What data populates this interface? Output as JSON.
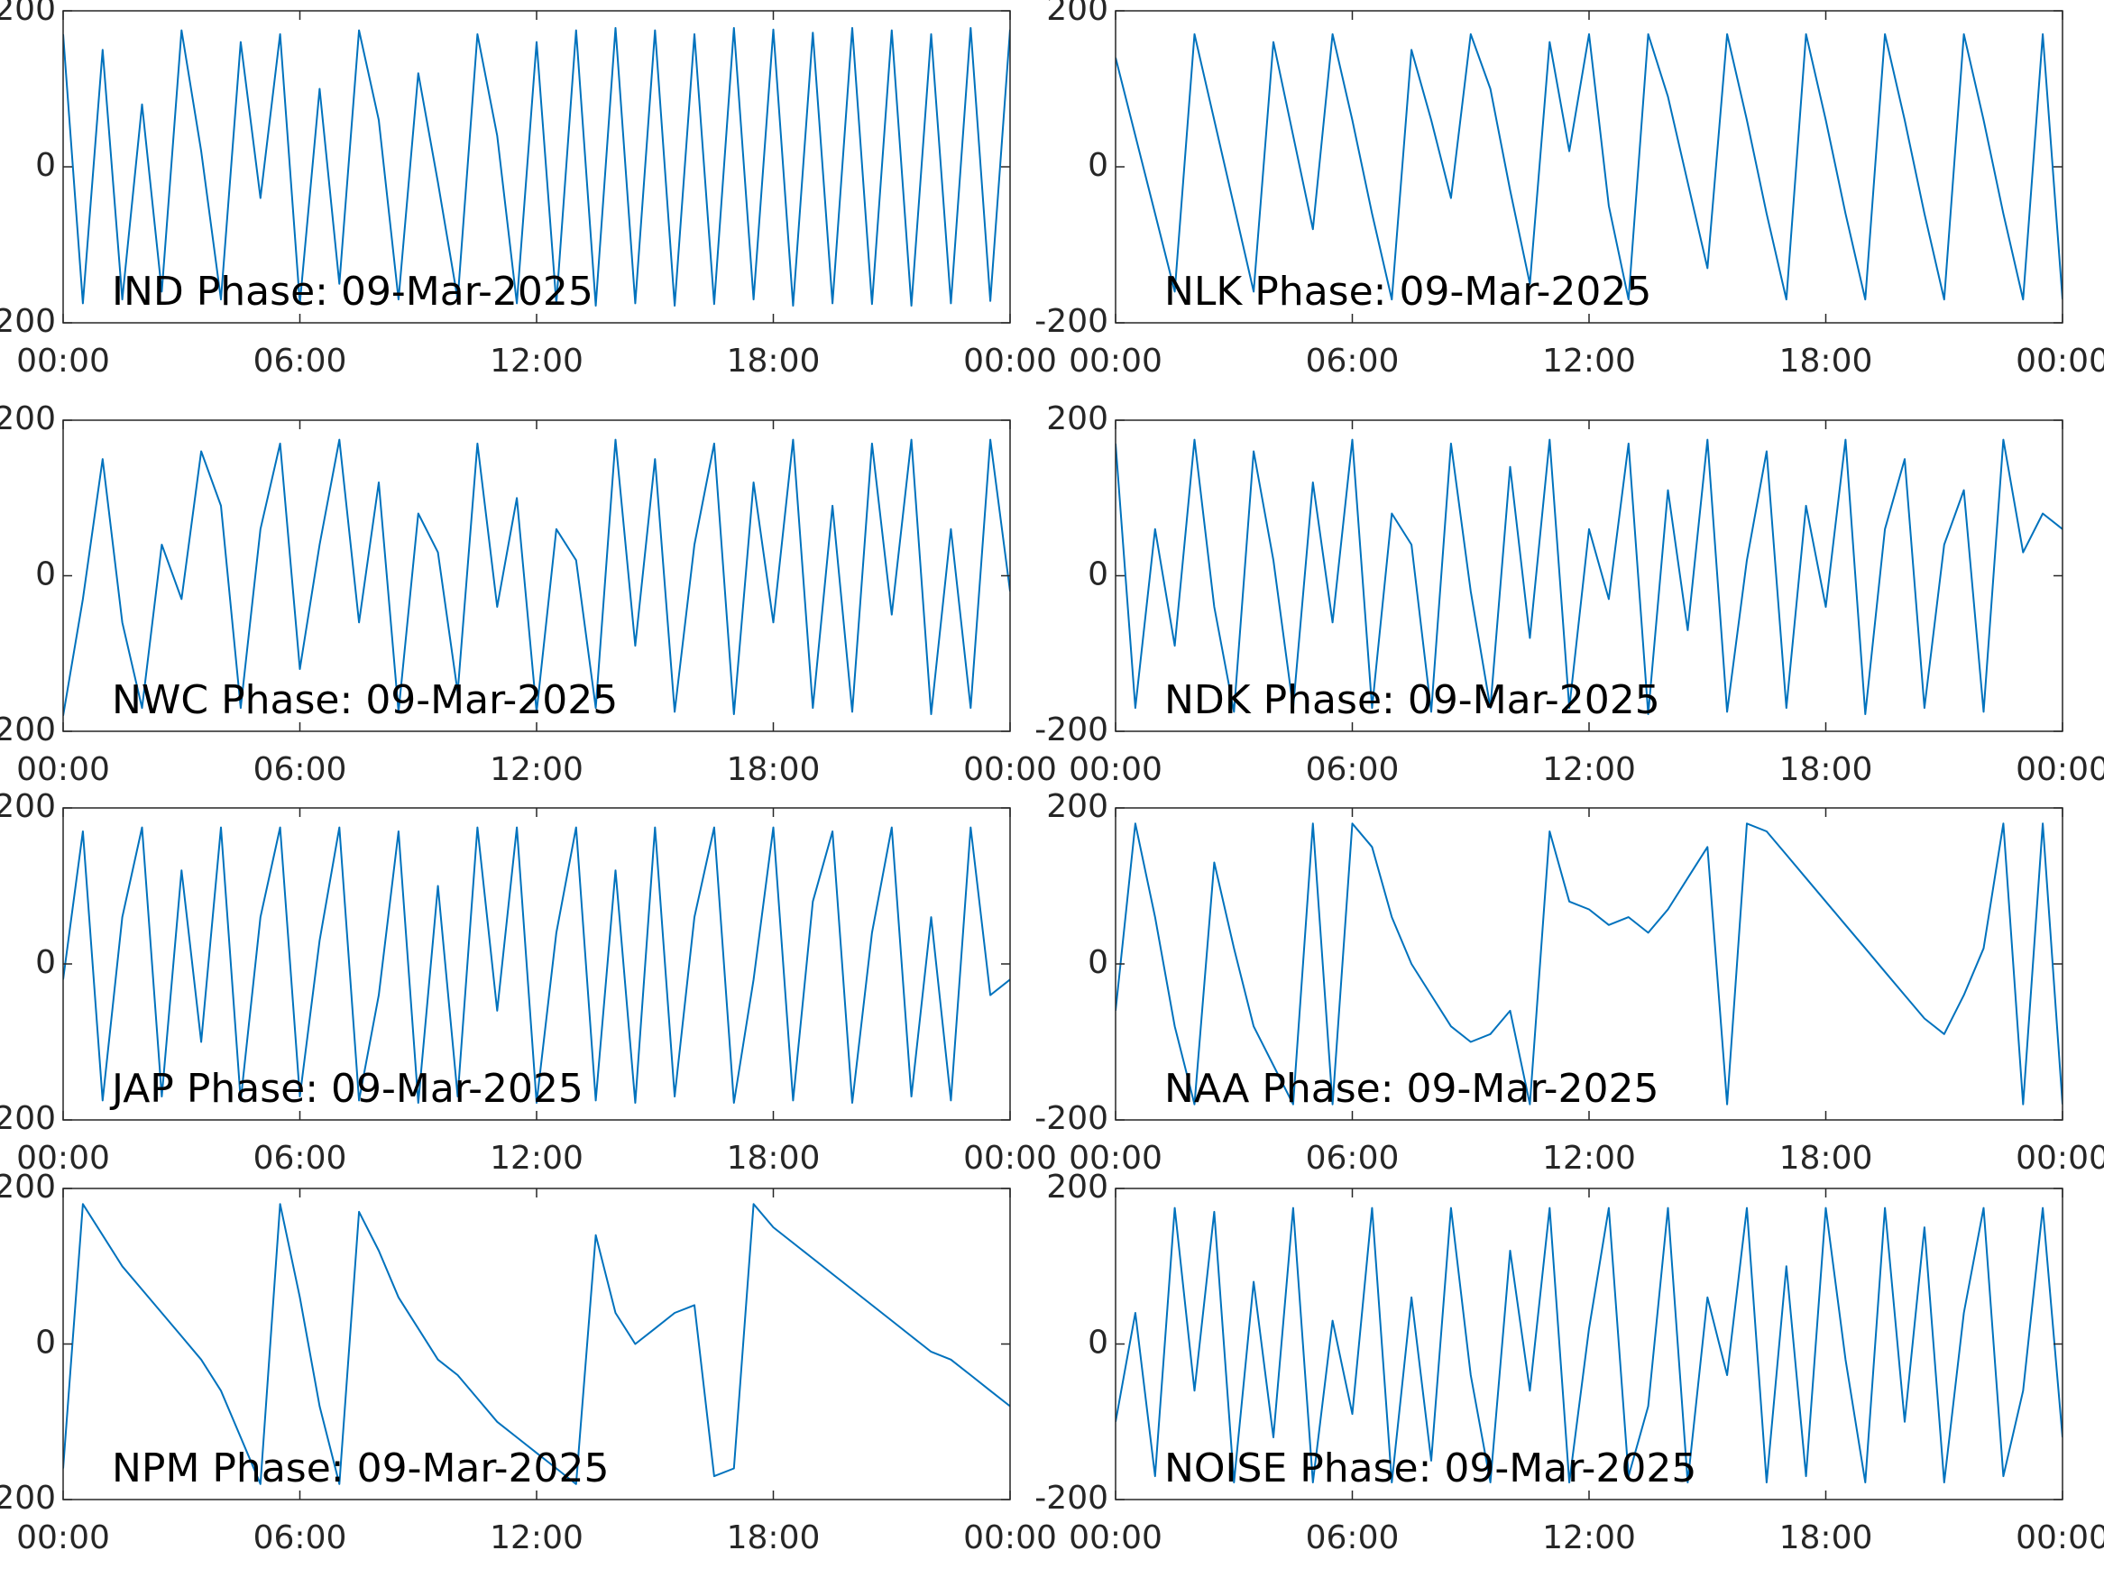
{
  "chart_data": [
    {
      "type": "line",
      "annotation": "IND Phase: 09-Mar-2025",
      "color": "#0072bd",
      "xlim": [
        0,
        24
      ],
      "ylim": [
        -200,
        200
      ],
      "yticks": [
        -200,
        0,
        200
      ],
      "xticks": [
        {
          "value": 0,
          "label": "00:00"
        },
        {
          "value": 6,
          "label": "06:00"
        },
        {
          "value": 12,
          "label": "12:00"
        },
        {
          "value": 18,
          "label": "18:00"
        },
        {
          "value": 24,
          "label": "00:00"
        }
      ],
      "x": [
        0,
        0.5,
        1,
        1.5,
        2,
        2.5,
        3,
        3.5,
        4,
        4.5,
        5,
        5.5,
        6,
        6.5,
        7,
        7.5,
        8,
        8.5,
        9,
        9.5,
        10,
        10.5,
        11,
        11.5,
        12,
        12.5,
        13,
        13.5,
        14,
        14.5,
        15,
        15.5,
        16,
        16.5,
        17,
        17.5,
        18,
        18.5,
        19,
        19.5,
        20,
        20.5,
        21,
        21.5,
        22,
        22.5,
        23,
        23.5,
        24
      ],
      "values": [
        170,
        -175,
        150,
        -170,
        80,
        -160,
        175,
        20,
        -170,
        160,
        -40,
        170,
        -175,
        100,
        -150,
        175,
        60,
        -170,
        120,
        -20,
        -170,
        170,
        40,
        -175,
        160,
        -175,
        175,
        -178,
        178,
        -175,
        175,
        -178,
        170,
        -176,
        178,
        -170,
        176,
        -178,
        172,
        -175,
        178,
        -176,
        175,
        -178,
        170,
        -175,
        178,
        -172,
        176
      ]
    },
    {
      "type": "line",
      "annotation": "NLK Phase: 09-Mar-2025",
      "color": "#0072bd",
      "xlim": [
        0,
        24
      ],
      "ylim": [
        -200,
        200
      ],
      "yticks": [
        -200,
        0,
        200
      ],
      "xticks": [
        {
          "value": 0,
          "label": "00:00"
        },
        {
          "value": 6,
          "label": "06:00"
        },
        {
          "value": 12,
          "label": "12:00"
        },
        {
          "value": 18,
          "label": "18:00"
        },
        {
          "value": 24,
          "label": "00:00"
        }
      ],
      "x": [
        0,
        0.5,
        1,
        1.5,
        2,
        2.5,
        3,
        3.5,
        4,
        4.5,
        5,
        5.5,
        6,
        6.5,
        7,
        7.5,
        8,
        8.5,
        9,
        9.5,
        10,
        10.5,
        11,
        11.5,
        12,
        12.5,
        13,
        13.5,
        14,
        14.5,
        15,
        15.5,
        16,
        16.5,
        17,
        17.5,
        18,
        18.5,
        19,
        19.5,
        20,
        20.5,
        21,
        21.5,
        22,
        22.5,
        23,
        23.5,
        24
      ],
      "values": [
        140,
        40,
        -60,
        -160,
        170,
        60,
        -50,
        -160,
        160,
        40,
        -80,
        170,
        60,
        -60,
        -170,
        150,
        60,
        -40,
        170,
        100,
        -30,
        -150,
        160,
        20,
        170,
        -50,
        -170,
        170,
        90,
        -20,
        -130,
        170,
        60,
        -60,
        -170,
        170,
        60,
        -60,
        -170,
        170,
        60,
        -60,
        -170,
        170,
        60,
        -60,
        -170,
        170,
        -170
      ]
    },
    {
      "type": "line",
      "annotation": "NWC Phase: 09-Mar-2025",
      "color": "#0072bd",
      "xlim": [
        0,
        24
      ],
      "ylim": [
        -200,
        200
      ],
      "yticks": [
        -200,
        0,
        200
      ],
      "xticks": [
        {
          "value": 0,
          "label": "00:00"
        },
        {
          "value": 6,
          "label": "06:00"
        },
        {
          "value": 12,
          "label": "12:00"
        },
        {
          "value": 18,
          "label": "18:00"
        },
        {
          "value": 24,
          "label": "00:00"
        }
      ],
      "x": [
        0,
        0.5,
        1,
        1.5,
        2,
        2.5,
        3,
        3.5,
        4,
        4.5,
        5,
        5.5,
        6,
        6.5,
        7,
        7.5,
        8,
        8.5,
        9,
        9.5,
        10,
        10.5,
        11,
        11.5,
        12,
        12.5,
        13,
        13.5,
        14,
        14.5,
        15,
        15.5,
        16,
        16.5,
        17,
        17.5,
        18,
        18.5,
        19,
        19.5,
        20,
        20.5,
        21,
        21.5,
        22,
        22.5,
        23,
        23.5,
        24
      ],
      "values": [
        -180,
        -30,
        150,
        -60,
        -170,
        40,
        -30,
        160,
        90,
        -170,
        60,
        170,
        -120,
        40,
        175,
        -60,
        120,
        -175,
        80,
        30,
        -150,
        170,
        -40,
        100,
        -175,
        60,
        20,
        -170,
        175,
        -90,
        150,
        -175,
        40,
        170,
        -178,
        120,
        -60,
        175,
        -170,
        90,
        -175,
        170,
        -50,
        175,
        -178,
        60,
        -170,
        175,
        -20
      ]
    },
    {
      "type": "line",
      "annotation": "NDK Phase: 09-Mar-2025",
      "color": "#0072bd",
      "xlim": [
        0,
        24
      ],
      "ylim": [
        -200,
        200
      ],
      "yticks": [
        -200,
        0,
        200
      ],
      "xticks": [
        {
          "value": 0,
          "label": "00:00"
        },
        {
          "value": 6,
          "label": "06:00"
        },
        {
          "value": 12,
          "label": "12:00"
        },
        {
          "value": 18,
          "label": "18:00"
        },
        {
          "value": 24,
          "label": "00:00"
        }
      ],
      "x": [
        0,
        0.5,
        1,
        1.5,
        2,
        2.5,
        3,
        3.5,
        4,
        4.5,
        5,
        5.5,
        6,
        6.5,
        7,
        7.5,
        8,
        8.5,
        9,
        9.5,
        10,
        10.5,
        11,
        11.5,
        12,
        12.5,
        13,
        13.5,
        14,
        14.5,
        15,
        15.5,
        16,
        16.5,
        17,
        17.5,
        18,
        18.5,
        19,
        19.5,
        20,
        20.5,
        21,
        21.5,
        22,
        22.5,
        23,
        23.5,
        24
      ],
      "values": [
        170,
        -170,
        60,
        -90,
        175,
        -40,
        -175,
        160,
        20,
        -170,
        120,
        -60,
        175,
        -170,
        80,
        40,
        -175,
        170,
        -20,
        -170,
        140,
        -80,
        175,
        -170,
        60,
        -30,
        170,
        -178,
        110,
        -70,
        175,
        -175,
        20,
        160,
        -170,
        90,
        -40,
        175,
        -178,
        60,
        150,
        -170,
        40,
        110,
        -175,
        175,
        30,
        80,
        60
      ]
    },
    {
      "type": "line",
      "annotation": "JAP Phase: 09-Mar-2025",
      "color": "#0072bd",
      "xlim": [
        0,
        24
      ],
      "ylim": [
        -200,
        200
      ],
      "yticks": [
        -200,
        0,
        200
      ],
      "xticks": [
        {
          "value": 0,
          "label": "00:00"
        },
        {
          "value": 6,
          "label": "06:00"
        },
        {
          "value": 12,
          "label": "12:00"
        },
        {
          "value": 18,
          "label": "18:00"
        },
        {
          "value": 24,
          "label": "00:00"
        }
      ],
      "x": [
        0,
        0.5,
        1,
        1.5,
        2,
        2.5,
        3,
        3.5,
        4,
        4.5,
        5,
        5.5,
        6,
        6.5,
        7,
        7.5,
        8,
        8.5,
        9,
        9.5,
        10,
        10.5,
        11,
        11.5,
        12,
        12.5,
        13,
        13.5,
        14,
        14.5,
        15,
        15.5,
        16,
        16.5,
        17,
        17.5,
        18,
        18.5,
        19,
        19.5,
        20,
        20.5,
        21,
        21.5,
        22,
        22.5,
        23,
        23.5,
        24
      ],
      "values": [
        -20,
        170,
        -175,
        60,
        175,
        -170,
        120,
        -100,
        175,
        -175,
        60,
        175,
        -170,
        30,
        175,
        -175,
        -40,
        170,
        -178,
        100,
        -170,
        175,
        -60,
        175,
        -178,
        40,
        175,
        -175,
        120,
        -178,
        175,
        -170,
        60,
        175,
        -178,
        -20,
        175,
        -175,
        80,
        170,
        -178,
        40,
        175,
        -170,
        60,
        -175,
        175,
        -40,
        -20
      ]
    },
    {
      "type": "line",
      "annotation": "NAA Phase: 09-Mar-2025",
      "color": "#0072bd",
      "xlim": [
        0,
        24
      ],
      "ylim": [
        -200,
        200
      ],
      "yticks": [
        -200,
        0,
        200
      ],
      "xticks": [
        {
          "value": 0,
          "label": "00:00"
        },
        {
          "value": 6,
          "label": "06:00"
        },
        {
          "value": 12,
          "label": "12:00"
        },
        {
          "value": 18,
          "label": "18:00"
        },
        {
          "value": 24,
          "label": "00:00"
        }
      ],
      "x": [
        0,
        0.5,
        1,
        1.5,
        2,
        2.5,
        3,
        3.5,
        4,
        4.5,
        5,
        5.5,
        6,
        6.5,
        7,
        7.5,
        8,
        8.5,
        9,
        9.5,
        10,
        10.5,
        11,
        11.5,
        12,
        12.5,
        13,
        13.5,
        14,
        14.5,
        15,
        15.5,
        16,
        16.5,
        17,
        17.5,
        18,
        18.5,
        19,
        19.5,
        20,
        20.5,
        21,
        21.5,
        22,
        22.5,
        23,
        23.5,
        24
      ],
      "values": [
        -60,
        180,
        60,
        -80,
        -180,
        130,
        20,
        -80,
        -130,
        -180,
        180,
        -180,
        180,
        150,
        60,
        0,
        -40,
        -80,
        -100,
        -90,
        -60,
        -180,
        170,
        80,
        70,
        50,
        60,
        40,
        70,
        110,
        150,
        -180,
        180,
        170,
        140,
        110,
        80,
        50,
        20,
        -10,
        -40,
        -70,
        -90,
        -40,
        20,
        180,
        -180,
        180,
        -180
      ]
    },
    {
      "type": "line",
      "annotation": "NPM Phase: 09-Mar-2025",
      "color": "#0072bd",
      "xlim": [
        0,
        24
      ],
      "ylim": [
        -200,
        200
      ],
      "yticks": [
        -200,
        0,
        200
      ],
      "xticks": [
        {
          "value": 0,
          "label": "00:00"
        },
        {
          "value": 6,
          "label": "06:00"
        },
        {
          "value": 12,
          "label": "12:00"
        },
        {
          "value": 18,
          "label": "18:00"
        },
        {
          "value": 24,
          "label": "00:00"
        }
      ],
      "x": [
        0,
        0.5,
        1,
        1.5,
        2,
        2.5,
        3,
        3.5,
        4,
        4.5,
        5,
        5.5,
        6,
        6.5,
        7,
        7.5,
        8,
        8.5,
        9,
        9.5,
        10,
        10.5,
        11,
        11.5,
        12,
        12.5,
        13,
        13.5,
        14,
        14.5,
        15,
        15.5,
        16,
        16.5,
        17,
        17.5,
        18,
        18.5,
        19,
        19.5,
        20,
        20.5,
        21,
        21.5,
        22,
        22.5,
        23,
        23.5,
        24
      ],
      "values": [
        -160,
        180,
        140,
        100,
        70,
        40,
        10,
        -20,
        -60,
        -120,
        -180,
        180,
        60,
        -80,
        -180,
        170,
        120,
        60,
        20,
        -20,
        -40,
        -70,
        -100,
        -120,
        -140,
        -160,
        -180,
        140,
        40,
        0,
        20,
        40,
        50,
        -170,
        -160,
        180,
        150,
        130,
        110,
        90,
        70,
        50,
        30,
        10,
        -10,
        -20,
        -40,
        -60,
        -80
      ]
    },
    {
      "type": "line",
      "annotation": "NOISE Phase: 09-Mar-2025",
      "color": "#0072bd",
      "xlim": [
        0,
        24
      ],
      "ylim": [
        -200,
        200
      ],
      "yticks": [
        -200,
        0,
        200
      ],
      "xticks": [
        {
          "value": 0,
          "label": "00:00"
        },
        {
          "value": 6,
          "label": "06:00"
        },
        {
          "value": 12,
          "label": "12:00"
        },
        {
          "value": 18,
          "label": "18:00"
        },
        {
          "value": 24,
          "label": "00:00"
        }
      ],
      "x": [
        0,
        0.5,
        1,
        1.5,
        2,
        2.5,
        3,
        3.5,
        4,
        4.5,
        5,
        5.5,
        6,
        6.5,
        7,
        7.5,
        8,
        8.5,
        9,
        9.5,
        10,
        10.5,
        11,
        11.5,
        12,
        12.5,
        13,
        13.5,
        14,
        14.5,
        15,
        15.5,
        16,
        16.5,
        17,
        17.5,
        18,
        18.5,
        19,
        19.5,
        20,
        20.5,
        21,
        21.5,
        22,
        22.5,
        23,
        23.5,
        24
      ],
      "values": [
        -100,
        40,
        -170,
        175,
        -60,
        170,
        -178,
        80,
        -120,
        175,
        -178,
        30,
        -90,
        175,
        -178,
        60,
        -150,
        175,
        -40,
        -178,
        120,
        -60,
        175,
        -178,
        20,
        175,
        -170,
        -80,
        175,
        -178,
        60,
        -40,
        175,
        -178,
        100,
        -170,
        175,
        -20,
        -178,
        175,
        -100,
        150,
        -178,
        40,
        175,
        -170,
        -60,
        175,
        -120
      ]
    }
  ]
}
